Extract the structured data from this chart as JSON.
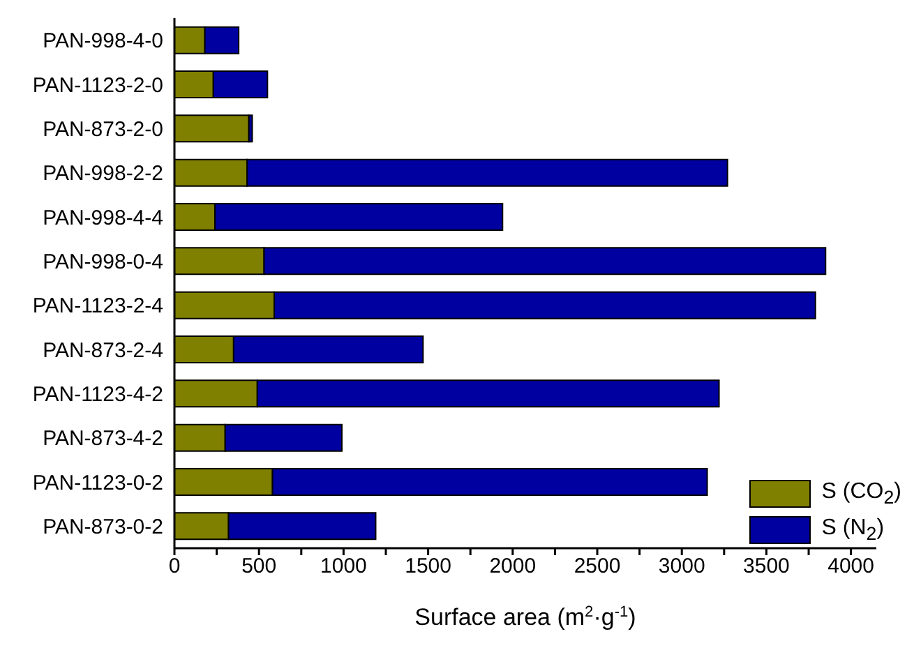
{
  "chart_data": {
    "type": "bar",
    "orientation": "horizontal",
    "stacked": true,
    "xlabel": "Surface area (m$^{2}$·g$^{-1}$)",
    "categories": [
      "PAN-998-4-0",
      "PAN-1123-2-0",
      "PAN-873-2-0",
      "PAN-998-2-2",
      "PAN-998-4-4",
      "PAN-998-0-4",
      "PAN-1123-2-4",
      "PAN-873-2-4",
      "PAN-1123-4-2",
      "PAN-873-4-2",
      "PAN-1123-0-2",
      "PAN-873-0-2"
    ],
    "series": [
      {
        "name": "S (CO$_{2}$)",
        "color": "#808000",
        "values": [
          180,
          230,
          440,
          430,
          240,
          530,
          590,
          350,
          490,
          300,
          580,
          320
        ]
      },
      {
        "name": "S (N$_{2}$)",
        "color": "#0000a0",
        "values": [
          200,
          320,
          20,
          2840,
          1700,
          3320,
          3200,
          1120,
          2730,
          690,
          2570,
          870
        ]
      }
    ],
    "xlim": [
      0,
      4150
    ],
    "xticks": [
      0,
      {
        "value": 250,
        "label": null
      },
      500,
      {
        "value": 750,
        "label": null
      },
      1000,
      {
        "value": 1250,
        "label": null
      },
      1500,
      {
        "value": 1750,
        "label": null
      },
      2000,
      {
        "value": 2250,
        "label": null
      },
      2500,
      {
        "value": 2750,
        "label": null
      },
      3000,
      {
        "value": 3250,
        "label": null
      },
      3500,
      {
        "value": 3750,
        "label": null
      },
      4000
    ],
    "grid": false,
    "legend": "bottom right"
  }
}
